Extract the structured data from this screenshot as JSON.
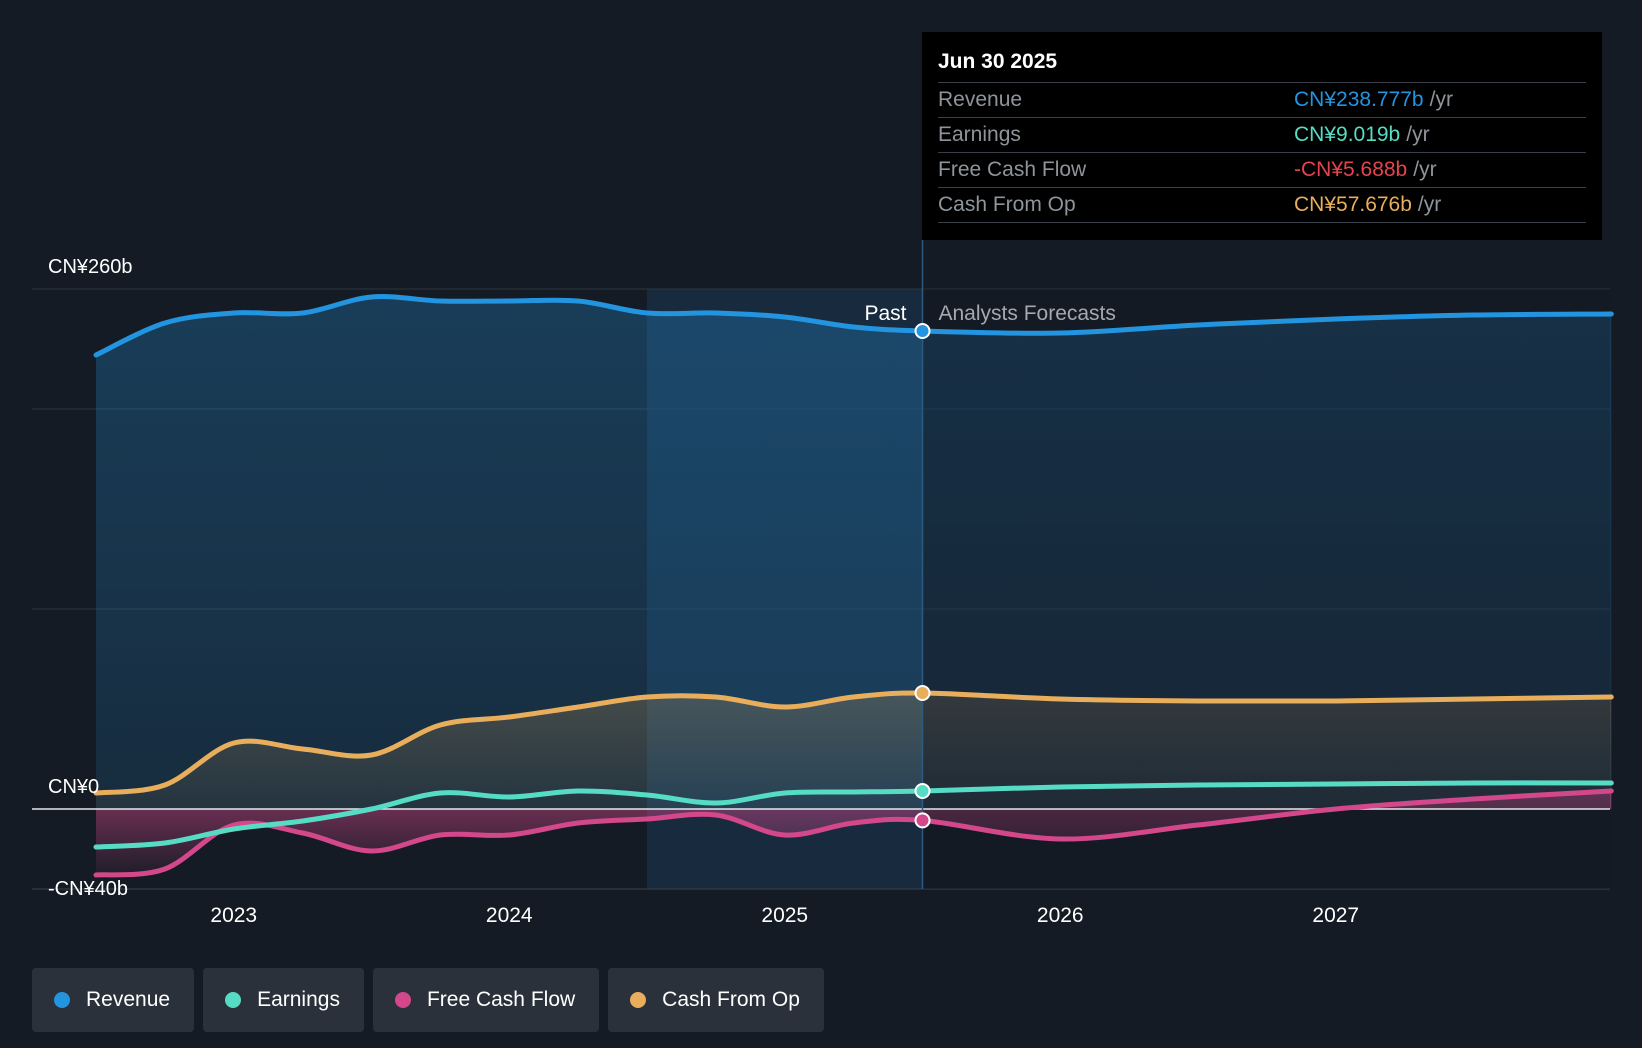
{
  "chart_data": {
    "type": "area",
    "y_tick_labels": [
      "CN¥260b",
      "CN¥0",
      "-CN¥40b"
    ],
    "ylim": [
      -40,
      260
    ],
    "xlim": [
      2022.5,
      2028.0
    ],
    "x_tick_labels": [
      "2023",
      "2024",
      "2025",
      "2026",
      "2027"
    ],
    "x_ticks": [
      2023,
      2024,
      2025,
      2026,
      2027
    ],
    "past_label": "Past",
    "forecast_label": "Analysts Forecasts",
    "divider_x": 2025.5,
    "highlight_start_x": 2024.5,
    "grid": true,
    "legend_position": "bottom-left",
    "series": [
      {
        "name": "Revenue",
        "color": "#2394df",
        "x": [
          2022.5,
          2022.75,
          2023.0,
          2023.25,
          2023.5,
          2023.75,
          2024.0,
          2024.25,
          2024.5,
          2024.75,
          2025.0,
          2025.25,
          2025.5,
          2026.0,
          2026.5,
          2027.0,
          2027.5,
          2028.0
        ],
        "values": [
          227,
          243,
          248,
          248,
          256,
          254,
          254,
          254,
          248,
          248,
          246,
          241,
          239,
          238,
          242,
          245,
          247,
          247.5
        ]
      },
      {
        "name": "Earnings",
        "color": "#56dcc5",
        "x": [
          2022.5,
          2022.75,
          2023.0,
          2023.25,
          2023.5,
          2023.75,
          2024.0,
          2024.25,
          2024.5,
          2024.75,
          2025.0,
          2025.25,
          2025.5,
          2026.0,
          2026.5,
          2027.0,
          2027.5,
          2028.0
        ],
        "values": [
          -19,
          -17,
          -10,
          -6,
          0,
          8,
          6,
          9,
          7,
          3,
          8,
          8.5,
          9,
          11,
          12,
          12.5,
          13,
          13
        ]
      },
      {
        "name": "Free Cash Flow",
        "color": "#d3478b",
        "x": [
          2022.5,
          2022.75,
          2023.0,
          2023.25,
          2023.5,
          2023.75,
          2024.0,
          2024.25,
          2024.5,
          2024.75,
          2025.0,
          2025.25,
          2025.5,
          2026.0,
          2026.5,
          2027.0,
          2027.5,
          2028.0
        ],
        "values": [
          -33,
          -30,
          -8,
          -12,
          -21,
          -13,
          -13,
          -7,
          -5,
          -3,
          -13,
          -7,
          -5.7,
          -15,
          -8,
          0,
          5,
          9
        ]
      },
      {
        "name": "Cash From Op",
        "color": "#e8ae5c",
        "x": [
          2022.5,
          2022.75,
          2023.0,
          2023.25,
          2023.5,
          2023.75,
          2024.0,
          2024.25,
          2024.5,
          2024.75,
          2025.0,
          2025.25,
          2025.5,
          2026.0,
          2026.5,
          2027.0,
          2027.5,
          2028.0
        ],
        "values": [
          8,
          12,
          33,
          30,
          27,
          42,
          46,
          51,
          56,
          56,
          51,
          56,
          58,
          55,
          54,
          54,
          55,
          56
        ]
      }
    ]
  },
  "tooltip": {
    "date": "Jun 30 2025",
    "unit": "/yr",
    "rows": [
      {
        "label": "Revenue",
        "value": "CN¥238.777b",
        "color": "#2394df"
      },
      {
        "label": "Earnings",
        "value": "CN¥9.019b",
        "color": "#56dcc5"
      },
      {
        "label": "Free Cash Flow",
        "value": "-CN¥5.688b",
        "color": "#e5434d"
      },
      {
        "label": "Cash From Op",
        "value": "CN¥57.676b",
        "color": "#e8ae5c"
      }
    ]
  },
  "legend": [
    {
      "label": "Revenue",
      "color": "#2394df"
    },
    {
      "label": "Earnings",
      "color": "#56dcc5"
    },
    {
      "label": "Free Cash Flow",
      "color": "#d3478b"
    },
    {
      "label": "Cash From Op",
      "color": "#e8ae5c"
    }
  ]
}
